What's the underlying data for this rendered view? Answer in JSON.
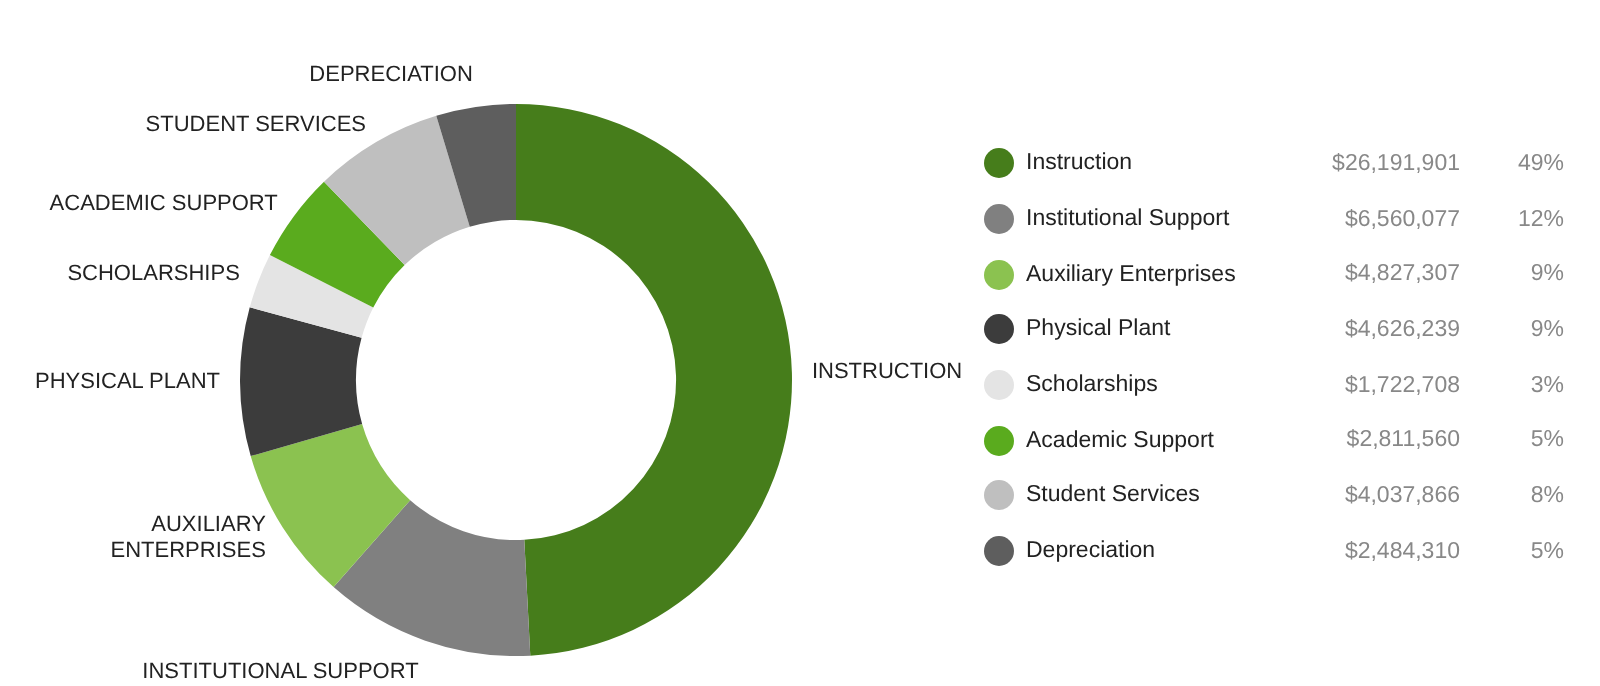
{
  "chart_data": {
    "type": "donut",
    "categories": [
      "Instruction",
      "Institutional Support",
      "Auxiliary Enterprises",
      "Physical Plant",
      "Scholarships",
      "Academic Support",
      "Student Services",
      "Depreciation"
    ],
    "values": [
      26191901,
      6560077,
      4827307,
      4626239,
      1722708,
      2811560,
      4037866,
      2484310
    ],
    "value_labels": [
      "$26,191,901",
      "$6,560,077",
      "$4,827,307",
      "$4,626,239",
      "$1,722,708",
      "$2,811,560",
      "$4,037,866",
      "$2,484,310"
    ],
    "colors": [
      "#467d1b",
      "#808080",
      "#8bc250",
      "#3c3c3c",
      "#e4e4e4",
      "#5aab1e",
      "#bfbfbf",
      "#5e5e5e"
    ],
    "legend": "right",
    "annotations": [
      {
        "text": "INSTRUCTION",
        "x": "Instruction"
      },
      {
        "text": "INSTITUTIONAL SUPPORT",
        "x": "Institutional Support"
      },
      {
        "text": "AUXILIARY ENTERPRISES",
        "x": "Auxiliary Enterprises"
      },
      {
        "text": "PHYSICAL PLANT",
        "x": "Physical Plant"
      },
      {
        "text": "SCHOLARSHIPS",
        "x": "Scholarships"
      },
      {
        "text": "ACADEMIC SUPPORT",
        "x": "Academic Support"
      },
      {
        "text": "STUDENT SERVICES",
        "x": "Student Services"
      },
      {
        "text": "DEPRECIATION",
        "x": "Depreciation"
      },
      {
        "text": "49%",
        "x": "Instruction"
      },
      {
        "text": "12%",
        "x": "Institutional Support"
      },
      {
        "text": "9%",
        "x": "Auxiliary Enterprises"
      },
      {
        "text": "9%",
        "x": "Physical Plant"
      },
      {
        "text": "3%",
        "x": "Scholarships"
      },
      {
        "text": "5%",
        "x": "Academic Support"
      },
      {
        "text": "8%",
        "x": "Student Services"
      },
      {
        "text": "5%",
        "x": "Depreciation"
      }
    ]
  }
}
